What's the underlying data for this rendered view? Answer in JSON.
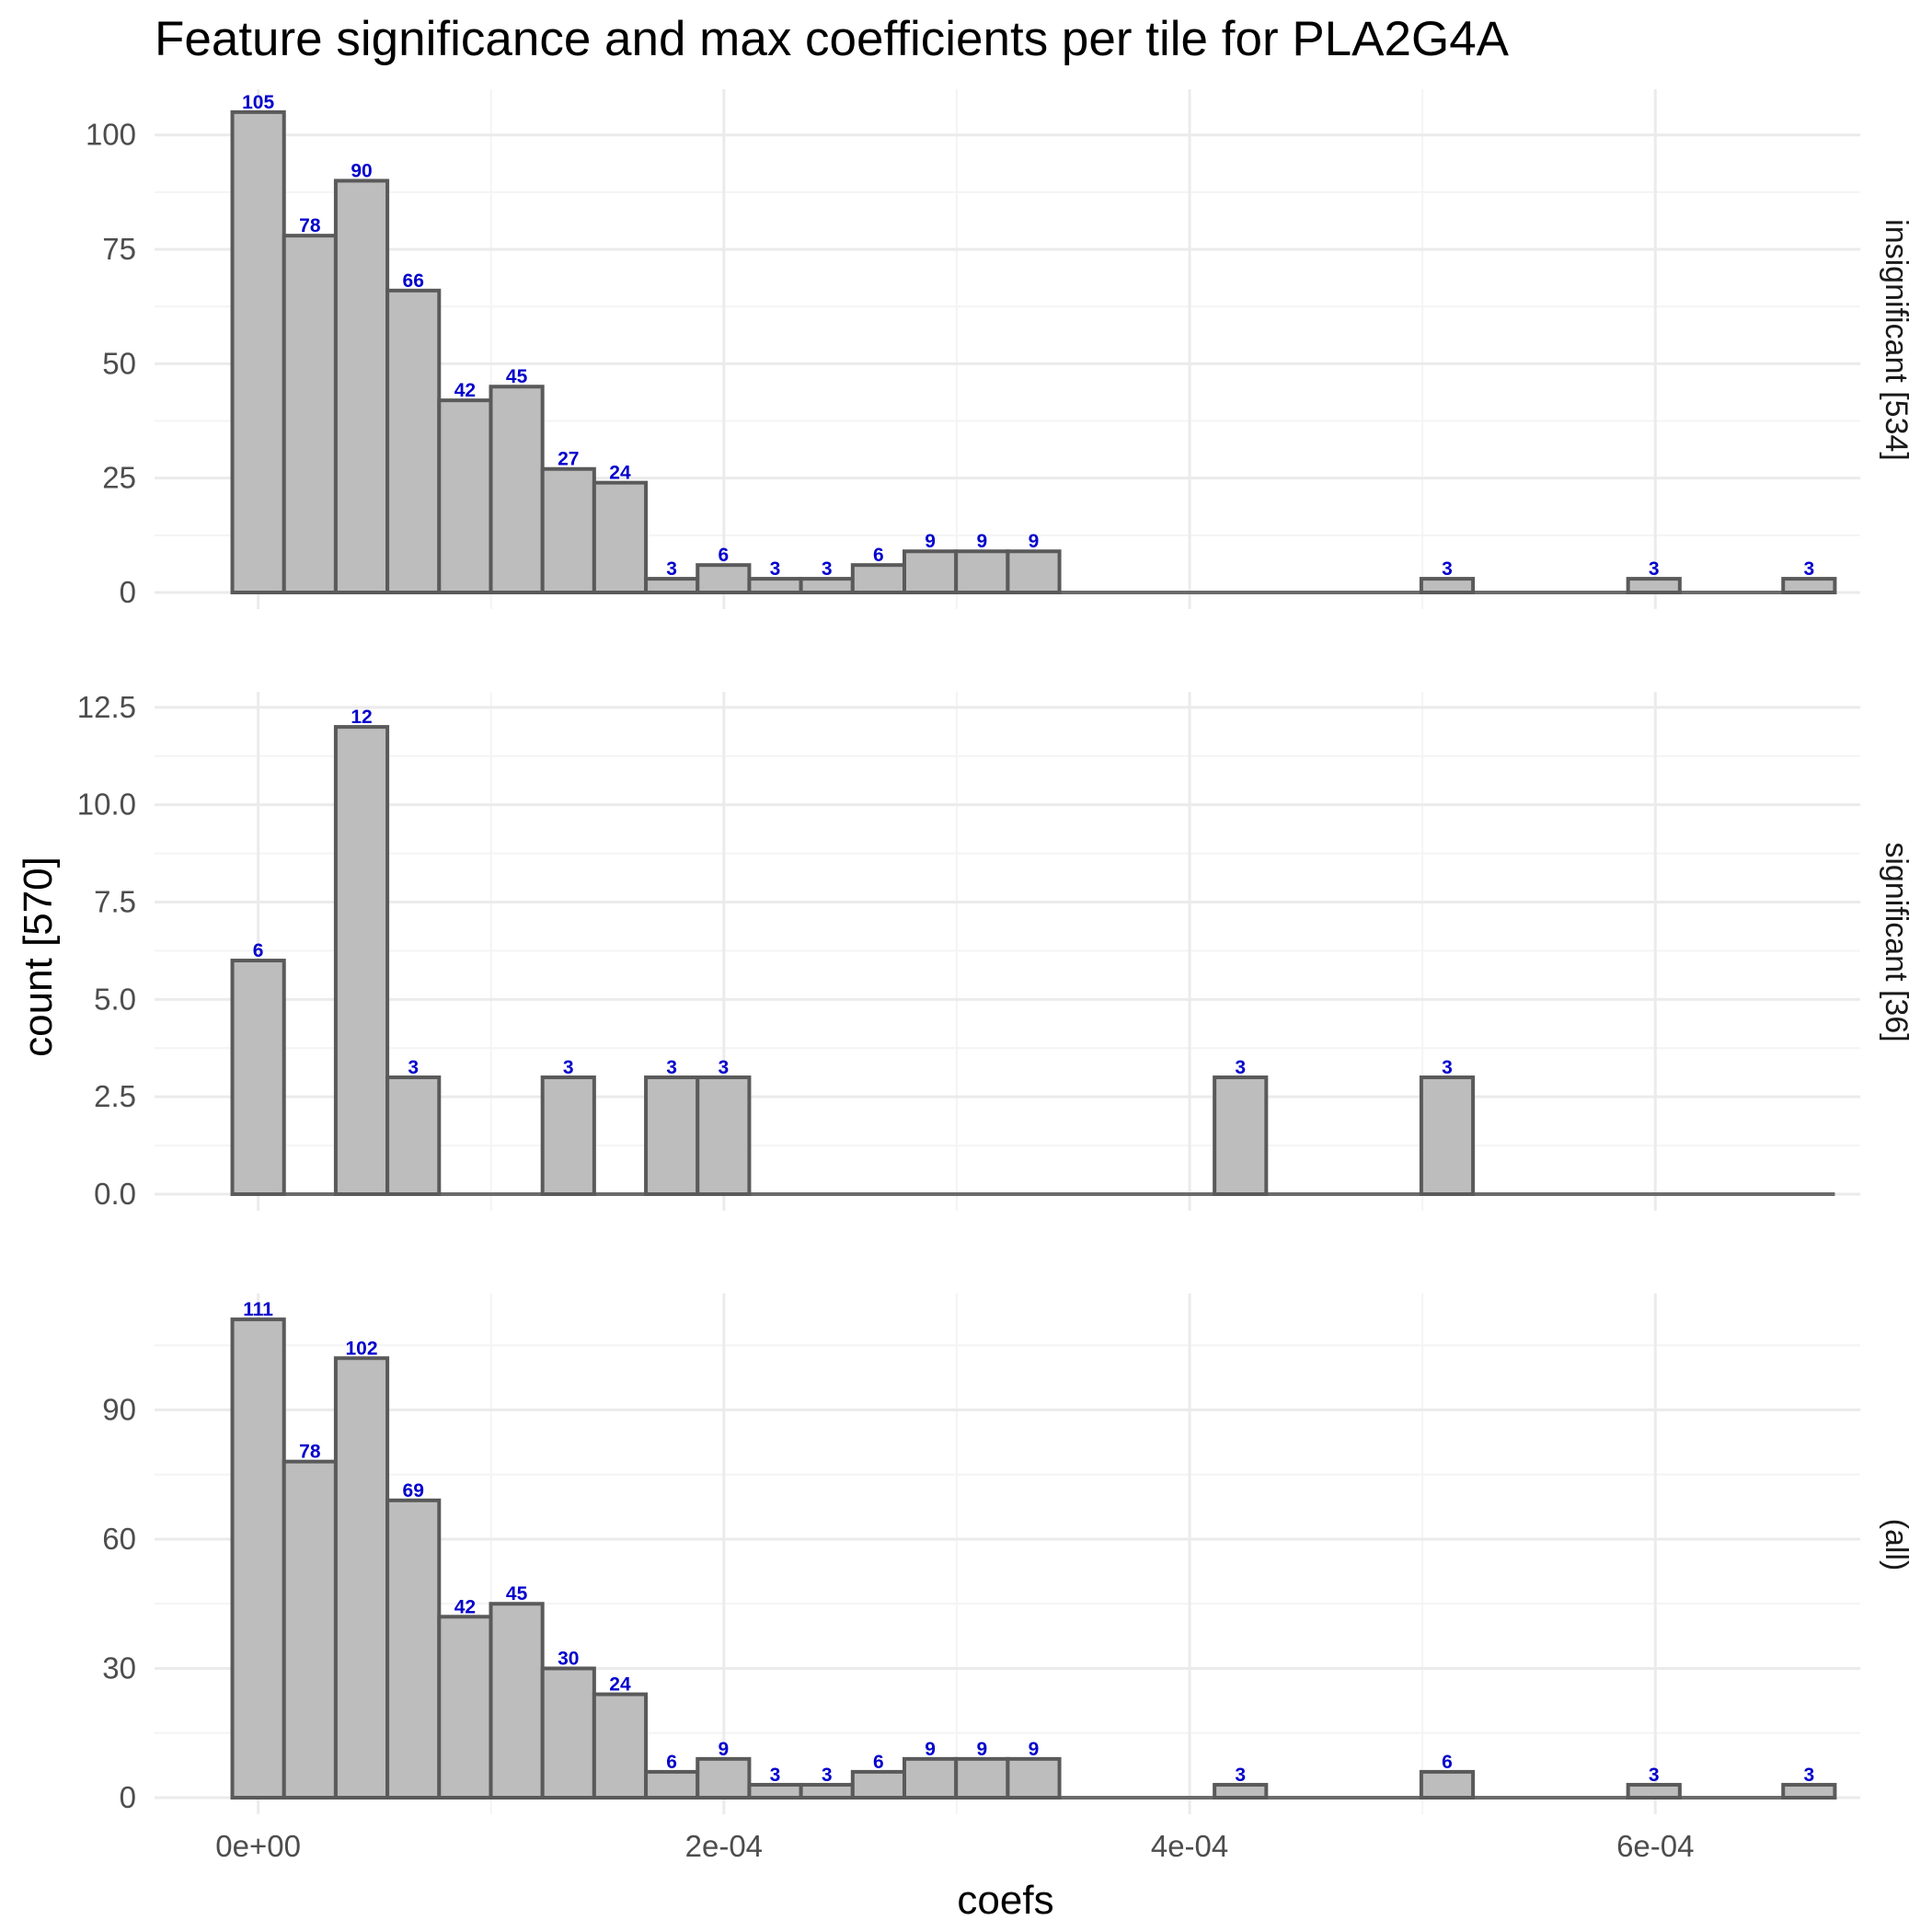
{
  "chart_data": {
    "type": "bar",
    "title": "Feature significance and max coefficients per tile for PLA2G4A",
    "xlabel": "coefs",
    "ylabel": "count [570]",
    "x_bin_width": 2.22e-05,
    "x_bin_start": -1.11e-05,
    "x_ticks": [
      0,
      0.0002,
      0.0004,
      0.0006
    ],
    "x_tick_labels": [
      "0e+00",
      "2e-04",
      "4e-04",
      "6e-04"
    ],
    "xlim": [
      -4.45e-05,
      0.000688
    ],
    "panels": [
      {
        "name": "insignificant [534]",
        "ylim": [
          0,
          110
        ],
        "y_ticks": [
          0,
          25,
          50,
          75,
          100
        ],
        "y_tick_labels": [
          "0",
          "25",
          "50",
          "75",
          "100"
        ],
        "values": [
          105,
          78,
          90,
          66,
          42,
          45,
          27,
          24,
          3,
          6,
          3,
          3,
          6,
          9,
          9,
          9,
          0,
          0,
          0,
          0,
          0,
          0,
          0,
          3,
          0,
          0,
          0,
          3,
          0,
          0,
          3
        ],
        "labels": [
          "105",
          "78",
          "90",
          "66",
          "42",
          "45",
          "27",
          "24",
          "3",
          "6",
          "3",
          "3",
          "6",
          "9",
          "9",
          "9",
          "",
          "",
          "",
          "",
          "",
          "",
          "",
          "3",
          "",
          "",
          "",
          "3",
          "",
          "",
          "3"
        ]
      },
      {
        "name": "significant [36]",
        "ylim": [
          0,
          12.9
        ],
        "y_ticks": [
          0,
          2.5,
          5,
          7.5,
          10,
          12.5
        ],
        "y_tick_labels": [
          "0.0",
          "2.5",
          "5.0",
          "7.5",
          "10.0",
          "12.5"
        ],
        "values": [
          6,
          0,
          12,
          3,
          0,
          0,
          3,
          0,
          3,
          3,
          0,
          0,
          0,
          0,
          0,
          0,
          0,
          0,
          0,
          3,
          0,
          0,
          0,
          3,
          0,
          0,
          0,
          0,
          0,
          0,
          0
        ],
        "labels": [
          "6",
          "",
          "12",
          "3",
          "",
          "",
          "3",
          "",
          "3",
          "3",
          "",
          "",
          "",
          "",
          "",
          "",
          "",
          "",
          "",
          "3",
          "",
          "",
          "",
          "3",
          "",
          "",
          "",
          "",
          "",
          "",
          ""
        ]
      },
      {
        "name": "(all)",
        "ylim": [
          0,
          117
        ],
        "y_ticks": [
          0,
          30,
          60,
          90
        ],
        "y_tick_labels": [
          "0",
          "30",
          "60",
          "90"
        ],
        "values": [
          111,
          78,
          102,
          69,
          42,
          45,
          30,
          24,
          6,
          9,
          3,
          3,
          6,
          9,
          9,
          9,
          0,
          0,
          0,
          3,
          0,
          0,
          0,
          6,
          0,
          0,
          0,
          3,
          0,
          0,
          3
        ],
        "labels": [
          "111",
          "78",
          "102",
          "69",
          "42",
          "45",
          "30",
          "24",
          "6",
          "9",
          "3",
          "3",
          "6",
          "9",
          "9",
          "9",
          "",
          "",
          "",
          "3",
          "",
          "",
          "",
          "6",
          "",
          "",
          "",
          "3",
          "",
          "",
          "3"
        ]
      }
    ],
    "colors": {
      "bar_fill": "#bdbdbd",
      "bar_stroke": "#5a5a5a",
      "bar_label": "#0000cc",
      "grid_major": "#ebebeb",
      "grid_minor": "#f4f4f4",
      "baseline": "#6b6b6b"
    },
    "grid": true,
    "legend": "none"
  }
}
